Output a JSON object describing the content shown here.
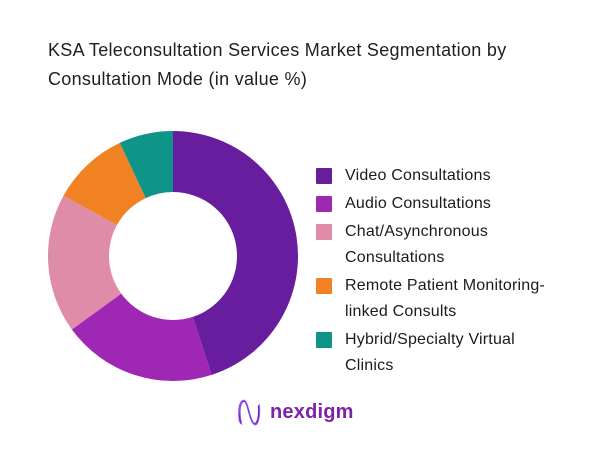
{
  "header": {
    "title_line1": "KSA Teleconsultation Services Market Segmentation by",
    "title_line2": "Consultation Mode (in value %)"
  },
  "chart_data": {
    "type": "pie",
    "subtype": "donut",
    "title": "KSA Teleconsultation Services Market Segmentation by Consultation Mode (in value %)",
    "unit": "value %",
    "legend_position": "right",
    "start_angle_deg": 0,
    "direction": "clockwise",
    "inner_radius_ratio": 0.51,
    "series": [
      {
        "name": "Video Consultations",
        "value": 45,
        "color": "#681C9E"
      },
      {
        "name": "Audio Consultations",
        "value": 20,
        "color": "#9E28B3"
      },
      {
        "name": "Chat/Asynchronous Consultations",
        "value": 18,
        "color": "#DE8CA8"
      },
      {
        "name": "Remote Patient Monitoring-linked Consults",
        "value": 10,
        "color": "#F08224"
      },
      {
        "name": "Hybrid/Specialty Virtual Clinics",
        "value": 7,
        "color": "#0E9488"
      }
    ]
  },
  "footer": {
    "logo_text": "nexdigm",
    "logo_color": "#7e22a8",
    "logo_mark": "wave-n-icon",
    "logo_mark_colors": [
      "#5b21b6",
      "#a855f7",
      "#7c3aed"
    ]
  }
}
